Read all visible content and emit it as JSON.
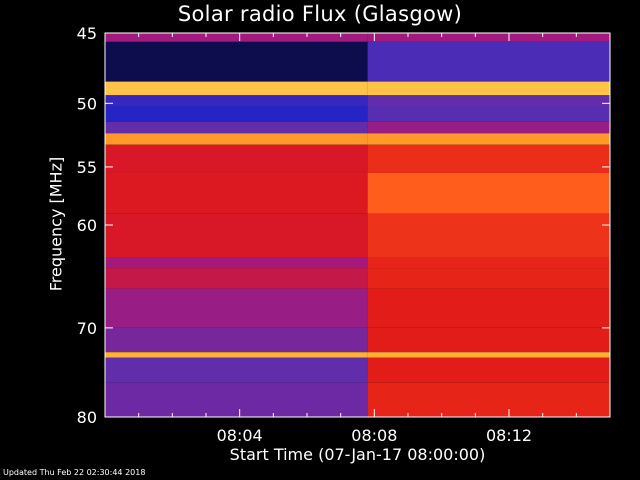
{
  "chart_data": {
    "type": "heatmap",
    "title": "Solar radio Flux (Glasgow)",
    "xlabel": "Start Time (07-Jan-17 08:00:00)",
    "ylabel": "Frequency [MHz]",
    "x_unit": "minutes",
    "xlim": [
      0,
      15
    ],
    "x_tick_values": [
      4,
      8,
      12
    ],
    "x_tick_labels": [
      "08:04",
      "08:08",
      "08:12"
    ],
    "y_scale": "log",
    "ylim": [
      45,
      80
    ],
    "y_tick_values": [
      45,
      50,
      55,
      60,
      70,
      80
    ],
    "y_tick_labels": [
      "45",
      "50",
      "55",
      "60",
      "70",
      "80"
    ],
    "colormap": [
      "#0a0a3a",
      "#1e22c8",
      "#5a2fb0",
      "#a8187a",
      "#e01818",
      "#ff5a1a",
      "#ffb030",
      "#fff080"
    ],
    "change_time_min": 7.8,
    "bands": [
      {
        "f0": 45.0,
        "f1": 45.6,
        "before": 0.42,
        "after": 0.42
      },
      {
        "f0": 45.6,
        "f1": 48.4,
        "before": 0.02,
        "after": 0.25
      },
      {
        "f0": 48.4,
        "f1": 49.4,
        "before": 0.9,
        "after": 0.9
      },
      {
        "f0": 49.4,
        "f1": 50.2,
        "before": 0.2,
        "after": 0.3
      },
      {
        "f0": 50.2,
        "f1": 51.4,
        "before": 0.16,
        "after": 0.28
      },
      {
        "f0": 51.4,
        "f1": 52.3,
        "before": 0.3,
        "after": 0.4
      },
      {
        "f0": 52.3,
        "f1": 53.2,
        "before": 0.82,
        "after": 0.82
      },
      {
        "f0": 53.2,
        "f1": 55.5,
        "before": 0.55,
        "after": 0.62
      },
      {
        "f0": 55.5,
        "f1": 59.0,
        "before": 0.56,
        "after": 0.72
      },
      {
        "f0": 59.0,
        "f1": 63.0,
        "before": 0.55,
        "after": 0.63
      },
      {
        "f0": 63.0,
        "f1": 64.0,
        "before": 0.42,
        "after": 0.6
      },
      {
        "f0": 64.0,
        "f1": 66.0,
        "before": 0.5,
        "after": 0.6
      },
      {
        "f0": 66.0,
        "f1": 70.0,
        "before": 0.4,
        "after": 0.58
      },
      {
        "f0": 70.0,
        "f1": 72.6,
        "before": 0.34,
        "after": 0.58
      },
      {
        "f0": 72.6,
        "f1": 73.2,
        "before": 0.86,
        "after": 0.86
      },
      {
        "f0": 73.2,
        "f1": 76.0,
        "before": 0.3,
        "after": 0.58
      },
      {
        "f0": 76.0,
        "f1": 80.0,
        "before": 0.32,
        "after": 0.6
      }
    ]
  },
  "footer": {
    "updated_text": "Updated Thu Feb 22 02:30:44 2018"
  }
}
